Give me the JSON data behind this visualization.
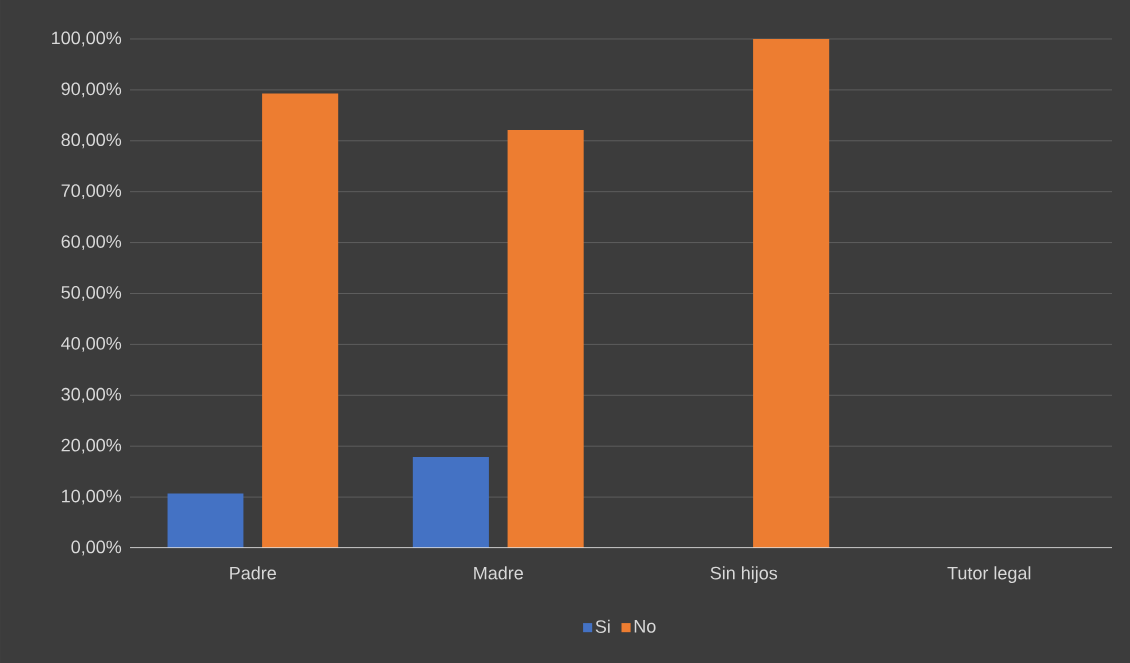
{
  "chart_data": {
    "type": "bar",
    "categories": [
      "Padre",
      "Madre",
      "Sin hijos",
      "Tutor legal"
    ],
    "series": [
      {
        "name": "Si",
        "color": "#4472c4",
        "values": [
          10.7,
          17.9,
          0,
          0
        ]
      },
      {
        "name": "No",
        "color": "#ed7d31",
        "values": [
          89.3,
          82.1,
          100,
          0
        ]
      }
    ],
    "ylim": [
      0,
      100
    ],
    "yticks": [
      {
        "value": 0,
        "label": "0,00%"
      },
      {
        "value": 10,
        "label": "10,00%"
      },
      {
        "value": 20,
        "label": "20,00%"
      },
      {
        "value": 30,
        "label": "30,00%"
      },
      {
        "value": 40,
        "label": "40,00%"
      },
      {
        "value": 50,
        "label": "50,00%"
      },
      {
        "value": 60,
        "label": "60,00%"
      },
      {
        "value": 70,
        "label": "70,00%"
      },
      {
        "value": 80,
        "label": "80,00%"
      },
      {
        "value": 90,
        "label": "90,00%"
      },
      {
        "value": 100,
        "label": "100,00%"
      }
    ],
    "grid": "y",
    "legend": "bottom"
  }
}
